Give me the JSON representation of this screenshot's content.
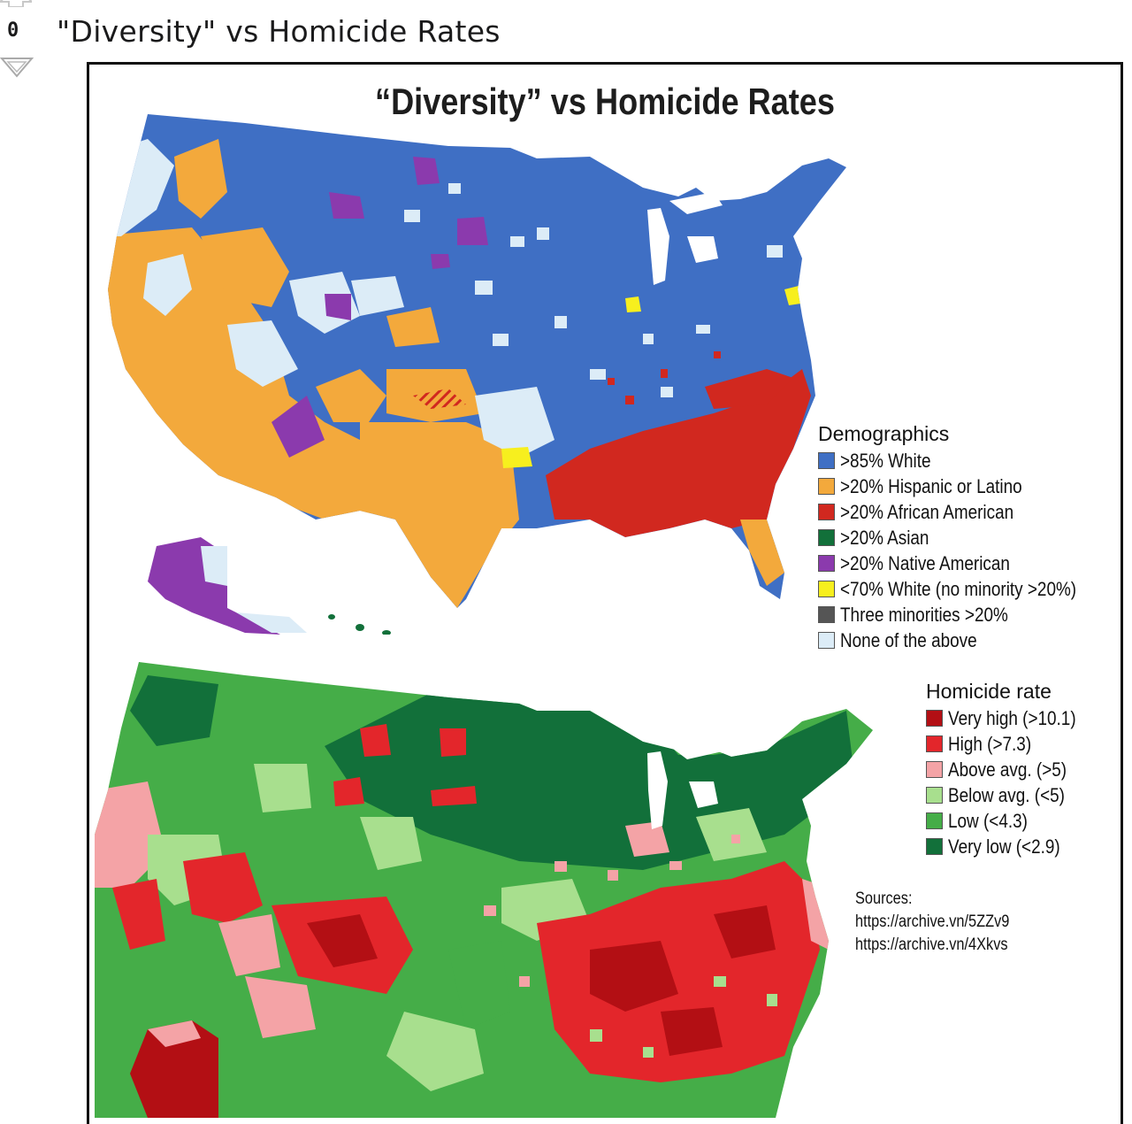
{
  "post": {
    "score": "0",
    "title": "\"Diversity\" vs Homicide Rates"
  },
  "figure": {
    "title": "“Diversity” vs Homicide Rates",
    "demographics_legend": {
      "title": "Demographics",
      "items": [
        {
          "label": ">85% White",
          "color": "#3f6fc4"
        },
        {
          "label": ">20% Hispanic or Latino",
          "color": "#f3a93c"
        },
        {
          "label": ">20% African American",
          "color": "#d1281f"
        },
        {
          "label": ">20% Asian",
          "color": "#12703a"
        },
        {
          "label": ">20% Native American",
          "color": "#8b3aad"
        },
        {
          "label": "<70% White (no minority >20%)",
          "color": "#f7ef1e"
        },
        {
          "label": "Three minorities >20%",
          "color": "#555555"
        },
        {
          "label": "None of the above",
          "color": "#dcecf7"
        }
      ]
    },
    "homicide_legend": {
      "title": "Homicide rate",
      "items": [
        {
          "label": "Very high (>10.1)",
          "color": "#b30f14"
        },
        {
          "label": "High (>7.3)",
          "color": "#e3262b"
        },
        {
          "label": "Above avg. (>5)",
          "color": "#f4a3a6"
        },
        {
          "label": "Below avg. (<5)",
          "color": "#a8df8e"
        },
        {
          "label": "Low (<4.3)",
          "color": "#45ad48"
        },
        {
          "label": "Very low (<2.9)",
          "color": "#12703a"
        }
      ]
    },
    "sources": {
      "title": "Sources:",
      "links": [
        "https://archive.vn/5ZZv9",
        "https://archive.vn/4Xkvs"
      ]
    }
  }
}
